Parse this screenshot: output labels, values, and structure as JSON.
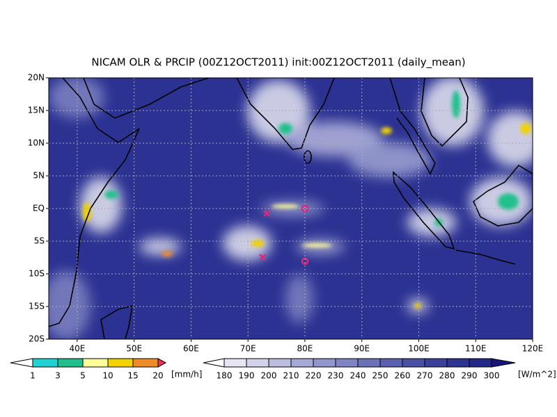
{
  "title": "NICAM OLR & PRCIP (00Z12OCT2011) init:00Z12OCT2011 (daily_mean)",
  "map": {
    "lon_range": [
      35,
      120
    ],
    "lat_range": [
      -20,
      20
    ],
    "lon_ticks": [
      {
        "value": 40,
        "label": "40E"
      },
      {
        "value": 50,
        "label": "50E"
      },
      {
        "value": 60,
        "label": "60E"
      },
      {
        "value": 70,
        "label": "70E"
      },
      {
        "value": 80,
        "label": "80E"
      },
      {
        "value": 90,
        "label": "90E"
      },
      {
        "value": 100,
        "label": "100E"
      },
      {
        "value": 110,
        "label": "110E"
      },
      {
        "value": 120,
        "label": "120E"
      }
    ],
    "lat_ticks": [
      {
        "value": 20,
        "label": "20N"
      },
      {
        "value": 15,
        "label": "15N"
      },
      {
        "value": 10,
        "label": "10N"
      },
      {
        "value": 5,
        "label": "5N"
      },
      {
        "value": 0,
        "label": "EQ"
      },
      {
        "value": -5,
        "label": "5S"
      },
      {
        "value": -10,
        "label": "10S"
      },
      {
        "value": -15,
        "label": "15S"
      },
      {
        "value": -20,
        "label": "20S"
      }
    ]
  },
  "precip_colorbar": {
    "unit": "[mm/h]",
    "levels": [
      1,
      3,
      5,
      10,
      15,
      20
    ],
    "colors": [
      "#ffffff",
      "#20d2d2",
      "#20c08c",
      "#ffff99",
      "#f2d200",
      "#f08c28",
      "#f0325a"
    ]
  },
  "olr_colorbar": {
    "unit": "[W/m^2]",
    "levels": [
      180,
      190,
      200,
      210,
      220,
      230,
      240,
      250,
      260,
      270,
      280,
      290,
      300
    ],
    "colors": [
      "#ffffff",
      "#e6e6f2",
      "#d2d3ea",
      "#bcbee0",
      "#a6a9d6",
      "#9296cc",
      "#7f84c2",
      "#6c72b8",
      "#5a60ae",
      "#4a50a4",
      "#3b419b",
      "#2e3492",
      "#222888",
      "#16197a"
    ]
  }
}
